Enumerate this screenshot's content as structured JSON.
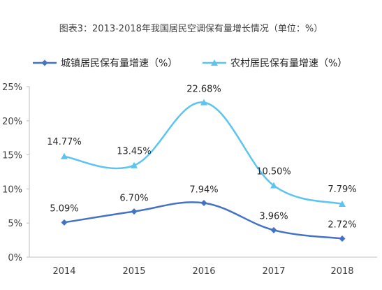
{
  "chart_data": {
    "type": "line",
    "title": "图表3：2013-2018年我国居民空调保有量增长情况（单位：%）",
    "categories": [
      "2014",
      "2015",
      "2016",
      "2017",
      "2018"
    ],
    "y_ticks": [
      "0%",
      "5%",
      "10%",
      "15%",
      "20%",
      "25%"
    ],
    "ylim": [
      0,
      25
    ],
    "grid": false,
    "legend_position": "top",
    "series": [
      {
        "name": "城镇居民保有量增速（%）",
        "values": [
          5.09,
          6.7,
          7.94,
          3.96,
          2.72
        ],
        "labels": [
          "5.09%",
          "6.70%",
          "7.94%",
          "3.96%",
          "2.72%"
        ],
        "color": "#4472c4",
        "marker": "diamond"
      },
      {
        "name": "农村居民保有量增速（%）",
        "values": [
          14.77,
          13.45,
          22.68,
          10.5,
          7.79
        ],
        "labels": [
          "14.77%",
          "13.45%",
          "22.68%",
          "10.50%",
          "7.79%"
        ],
        "color": "#5bc5ef",
        "marker": "triangle"
      }
    ]
  }
}
